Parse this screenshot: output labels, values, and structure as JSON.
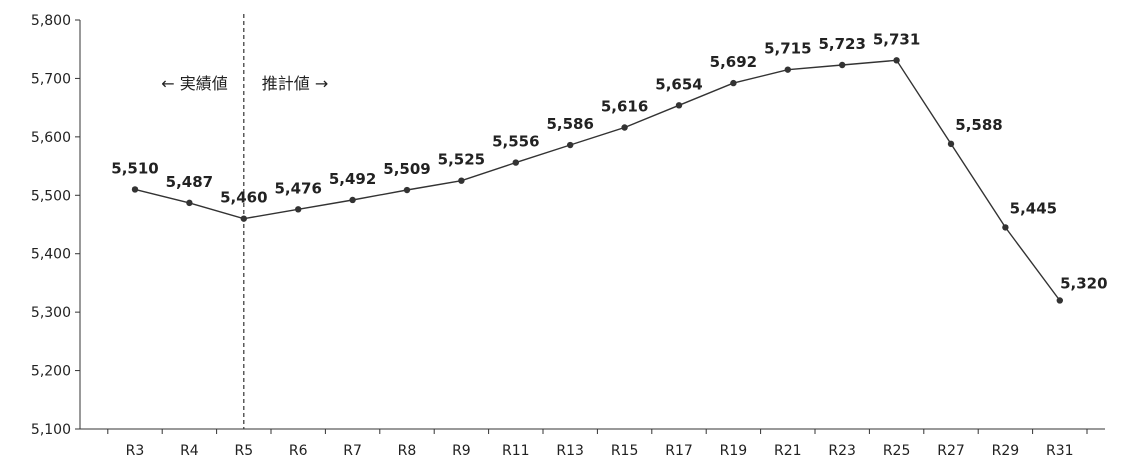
{
  "chart_data": {
    "type": "line",
    "categories": [
      "R3",
      "R4",
      "R5",
      "R6",
      "R7",
      "R8",
      "R9",
      "R11",
      "R13",
      "R15",
      "R17",
      "R19",
      "R21",
      "R23",
      "R25",
      "R27",
      "R29",
      "R31"
    ],
    "values": [
      5510,
      5487,
      5460,
      5476,
      5492,
      5509,
      5525,
      5556,
      5586,
      5616,
      5654,
      5692,
      5715,
      5723,
      5731,
      5588,
      5445,
      5320
    ],
    "value_labels": [
      "5,510",
      "5,487",
      "5,460",
      "5,476",
      "5,492",
      "5,509",
      "5,525",
      "5,556",
      "5,586",
      "5,616",
      "5,654",
      "5,692",
      "5,715",
      "5,723",
      "5,731",
      "5,588",
      "5,445",
      "5,320"
    ],
    "ylim": [
      5100,
      5800
    ],
    "yticks": [
      5100,
      5200,
      5300,
      5400,
      5500,
      5600,
      5700,
      5800
    ],
    "ytick_labels": [
      "5,100",
      "5,200",
      "5,300",
      "5,400",
      "5,500",
      "5,600",
      "5,700",
      "5,800"
    ],
    "grid": false,
    "divider_after_category": "R5",
    "annotations": {
      "left": "← 実績値",
      "right": "推計値 →"
    },
    "colors": {
      "line": "#333333",
      "marker": "#333333",
      "axis": "#333333"
    }
  }
}
